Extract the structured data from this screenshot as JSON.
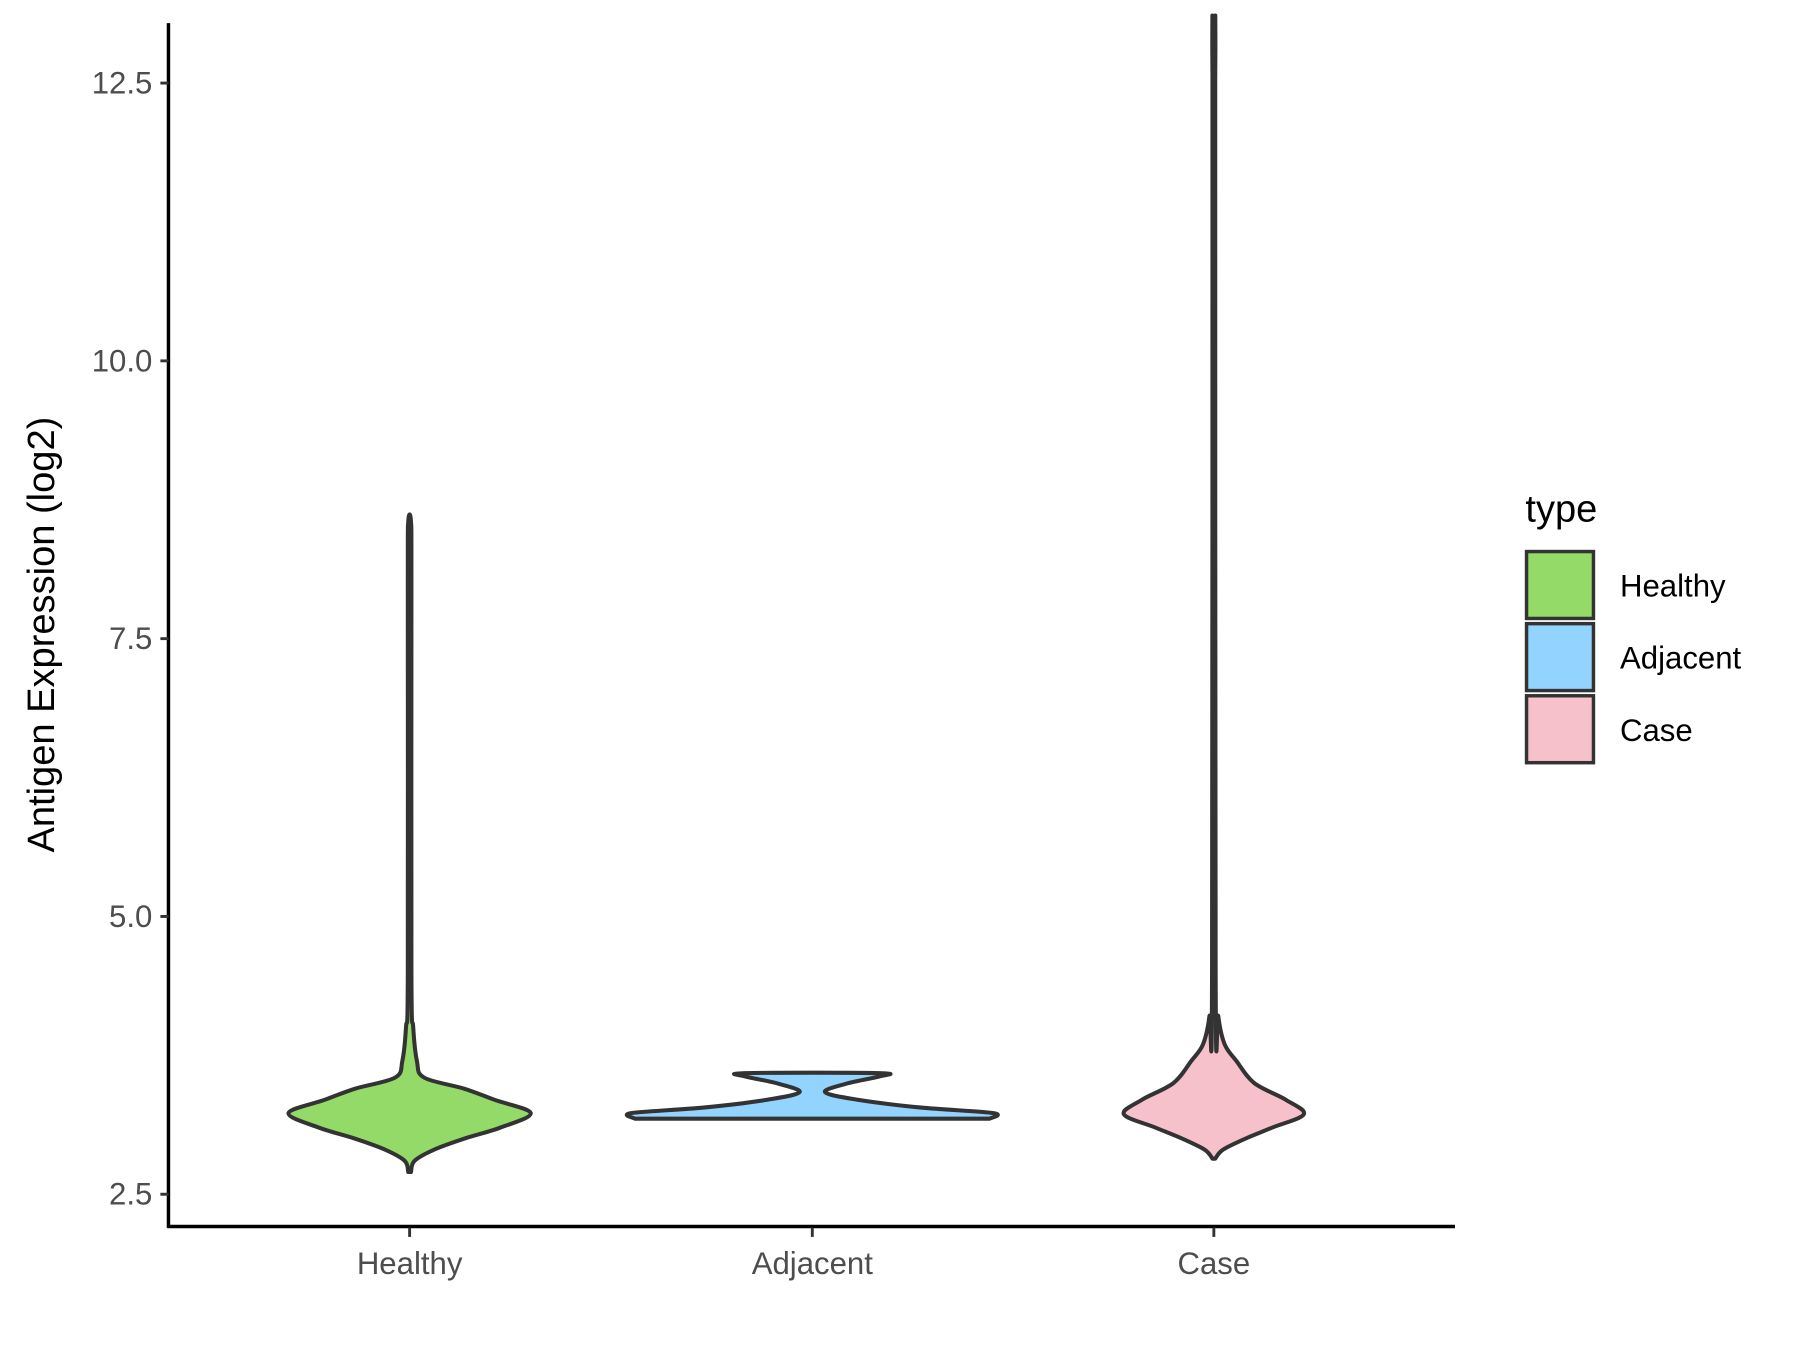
{
  "chart_data": {
    "type": "violin",
    "title": "",
    "xlabel": "",
    "ylabel": "Antigen Expression (log2)",
    "ylim": [
      2.2,
      12.8
    ],
    "yticks": [
      2.5,
      5.0,
      7.5,
      10.0,
      12.5
    ],
    "ytick_labels": [
      "2.5",
      "5.0",
      "7.5",
      "10.0",
      "12.5"
    ],
    "categories": [
      "Healthy",
      "Adjacent",
      "Case"
    ],
    "legend": {
      "title": "type",
      "position": "right",
      "entries": [
        "Healthy",
        "Adjacent",
        "Case"
      ]
    },
    "series": [
      {
        "name": "Healthy",
        "color": "#93DA69",
        "min": 2.7,
        "max": 8.55,
        "peak": 3.23,
        "flat_top": false,
        "density_profile": [
          [
            2.7,
            0
          ],
          [
            2.8,
            0.04
          ],
          [
            2.9,
            0.2
          ],
          [
            3.0,
            0.45
          ],
          [
            3.1,
            0.75
          ],
          [
            3.23,
            1.0
          ],
          [
            3.35,
            0.7
          ],
          [
            3.45,
            0.45
          ],
          [
            3.55,
            0.12
          ],
          [
            3.7,
            0.06
          ],
          [
            4.0,
            0.03
          ],
          [
            4.5,
            0.015
          ],
          [
            8.0,
            0.015
          ],
          [
            8.55,
            0
          ]
        ]
      },
      {
        "name": "Adjacent",
        "color": "#92D4FF",
        "min": 3.18,
        "max": 3.59,
        "peak": 3.23,
        "flat_top": true,
        "density_profile": [
          [
            3.18,
            0.98
          ],
          [
            3.23,
            1.0
          ],
          [
            3.28,
            0.6
          ],
          [
            3.35,
            0.25
          ],
          [
            3.42,
            0.07
          ],
          [
            3.5,
            0.2
          ],
          [
            3.56,
            0.37
          ],
          [
            3.59,
            0.37
          ]
        ]
      },
      {
        "name": "Case",
        "color": "#F7C1CC",
        "min": 2.82,
        "max": 12.55,
        "peak": 3.22,
        "flat_top": false,
        "density_profile": [
          [
            2.82,
            0
          ],
          [
            2.9,
            0.1
          ],
          [
            3.0,
            0.35
          ],
          [
            3.1,
            0.65
          ],
          [
            3.22,
            1.0
          ],
          [
            3.35,
            0.8
          ],
          [
            3.5,
            0.45
          ],
          [
            3.7,
            0.25
          ],
          [
            3.85,
            0.12
          ],
          [
            4.1,
            0.05
          ],
          [
            4.5,
            0.02
          ],
          [
            12.5,
            0.012
          ],
          [
            12.55,
            0
          ]
        ]
      }
    ]
  }
}
